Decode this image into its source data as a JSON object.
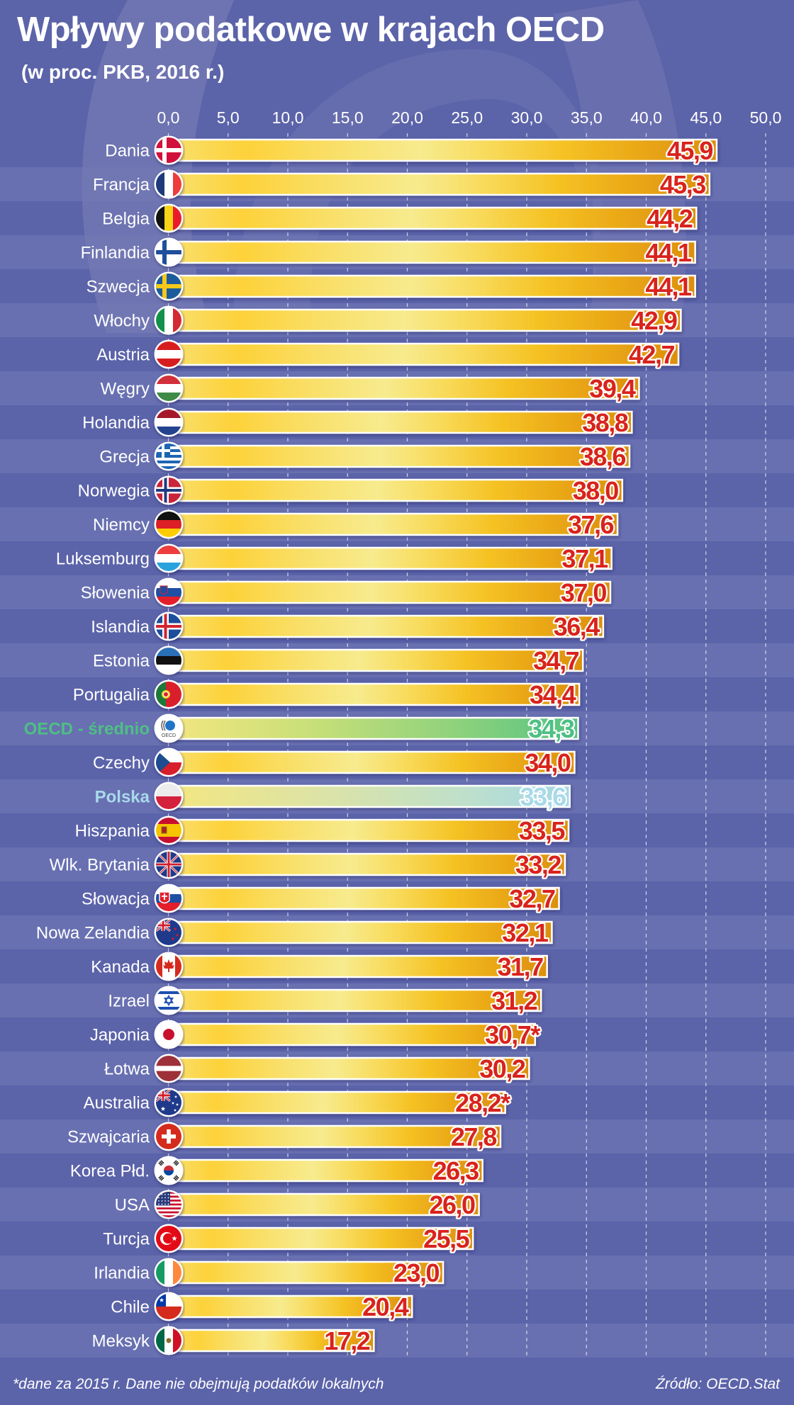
{
  "header": {
    "title": "Wpływy podatkowe w krajach OECD",
    "subtitle": "(w proc. PKB, 2016 r.)"
  },
  "footer": {
    "note": "*dane za 2015 r. Dane nie obejmują podatków lokalnych",
    "source": "Źródło: OECD.Stat"
  },
  "colors": {
    "background": "#5b63a9",
    "stripe_light": "#6870b1",
    "value_red": "#d8231c",
    "oecd_green": "#4dc083",
    "polska_blue": "#a9d9ea"
  },
  "chart_data": {
    "type": "bar",
    "orientation": "horizontal",
    "title": "Wpływy podatkowe w krajach OECD",
    "subtitle": "(w proc. PKB, 2016 r.)",
    "xlabel": "",
    "ylabel": "",
    "xlim": [
      0,
      50
    ],
    "grid": true,
    "ticks": [
      "0,0",
      "5,0",
      "10,0",
      "15,0",
      "20,0",
      "25,0",
      "30,0",
      "35,0",
      "40,0",
      "45,0",
      "50,0"
    ],
    "tick_values": [
      0,
      5,
      10,
      15,
      20,
      25,
      30,
      35,
      40,
      45,
      50
    ],
    "categories": [
      "Dania",
      "Francja",
      "Belgia",
      "Finlandia",
      "Szwecja",
      "Włochy",
      "Austria",
      "Węgry",
      "Holandia",
      "Grecja",
      "Norwegia",
      "Niemcy",
      "Luksemburg",
      "Słowenia",
      "Islandia",
      "Estonia",
      "Portugalia",
      "OECD - średnio",
      "Czechy",
      "Polska",
      "Hiszpania",
      "Wlk. Brytania",
      "Słowacja",
      "Nowa Zelandia",
      "Kanada",
      "Izrael",
      "Japonia",
      "Łotwa",
      "Australia",
      "Szwajcaria",
      "Korea Płd.",
      "USA",
      "Turcja",
      "Irlandia",
      "Chile",
      "Meksyk"
    ],
    "values": [
      45.9,
      45.3,
      44.2,
      44.1,
      44.1,
      42.9,
      42.7,
      39.4,
      38.8,
      38.6,
      38.0,
      37.6,
      37.1,
      37.0,
      36.4,
      34.7,
      34.4,
      34.3,
      34.0,
      33.6,
      33.5,
      33.2,
      32.7,
      32.1,
      31.7,
      31.2,
      30.7,
      30.2,
      28.2,
      27.8,
      26.3,
      26.0,
      25.5,
      23.0,
      20.4,
      17.2
    ],
    "value_labels": [
      "45,9",
      "45,3",
      "44,2",
      "44,1",
      "44,1",
      "42,9",
      "42,7",
      "39,4",
      "38,8",
      "38,6",
      "38,0",
      "37,6",
      "37,1",
      "37,0",
      "36,4",
      "34,7",
      "34,4",
      "34,3",
      "34,0",
      "33,6",
      "33,5",
      "33,2",
      "32,7",
      "32,1",
      "31,7",
      "31,2",
      "30,7*",
      "30,2",
      "28,2*",
      "27,8",
      "26,3",
      "26,0",
      "25,5",
      "23,0",
      "20,4",
      "17,2"
    ],
    "flags": [
      "denmark-flag",
      "france-flag",
      "belgium-flag",
      "finland-flag",
      "sweden-flag",
      "italy-flag",
      "austria-flag",
      "hungary-flag",
      "netherlands-flag",
      "greece-flag",
      "norway-flag",
      "germany-flag",
      "luxembourg-flag",
      "slovenia-flag",
      "iceland-flag",
      "estonia-flag",
      "portugal-flag",
      "oecd-logo",
      "czechia-flag",
      "poland-flag",
      "spain-flag",
      "uk-flag",
      "slovakia-flag",
      "new-zealand-flag",
      "canada-flag",
      "israel-flag",
      "japan-flag",
      "latvia-flag",
      "australia-flag",
      "switzerland-flag",
      "south-korea-flag",
      "usa-flag",
      "turkey-flag",
      "ireland-flag",
      "chile-flag",
      "mexico-flag"
    ],
    "highlight": {
      "OECD - średnio": "oecd",
      "Polska": "polska"
    },
    "oecd_logo_text": "OECD"
  }
}
